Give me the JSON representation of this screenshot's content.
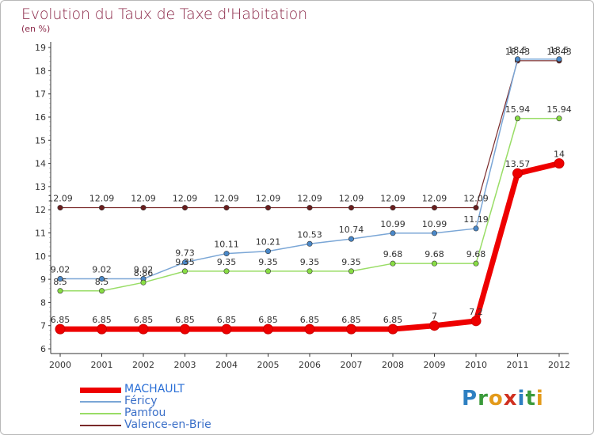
{
  "header": {
    "title": "Evolution du Taux de Taxe d'Habitation",
    "subtitle": "(en %)"
  },
  "logo": {
    "text": "Proxiti",
    "letters": [
      "P",
      "r",
      "o",
      "x",
      "i",
      "t",
      "i"
    ],
    "colors": [
      "#2d7fc1",
      "#3a9a3a",
      "#e39a1a",
      "#d03020",
      "#2d7fc1",
      "#3a9a3a",
      "#e39a1a"
    ]
  },
  "chart_data": {
    "type": "line",
    "title": "Evolution du Taux de Taxe d'Habitation",
    "xlabel": "",
    "ylabel": "(en %)",
    "x": [
      "2000",
      "2001",
      "2002",
      "2003",
      "2004",
      "2005",
      "2006",
      "2007",
      "2008",
      "2009",
      "2010",
      "2011",
      "2012"
    ],
    "ylim": [
      6,
      19
    ],
    "yticks": [
      "6",
      "7",
      "8",
      "9",
      "10",
      "11",
      "12",
      "13",
      "14",
      "15",
      "16",
      "17",
      "18",
      "19"
    ],
    "grid": false,
    "legend": "bottom-left",
    "series": [
      {
        "name": "MACHAULT",
        "color": "#ee0000",
        "values": [
          6.85,
          6.85,
          6.85,
          6.85,
          6.85,
          6.85,
          6.85,
          6.85,
          6.85,
          7,
          7.2,
          13.57,
          14
        ],
        "labels": [
          "6.85",
          "6.85",
          "6.85",
          "6.85",
          "6.85",
          "6.85",
          "6.85",
          "6.85",
          "6.85",
          "7",
          "7.2",
          "13.57",
          "14"
        ]
      },
      {
        "name": "Féricy",
        "color": "#7aa6d6",
        "values": [
          9.02,
          9.02,
          9.02,
          9.73,
          10.11,
          10.21,
          10.53,
          10.74,
          10.99,
          10.99,
          11.19,
          18.5,
          18.5
        ],
        "labels": [
          "9.02",
          "9.02",
          "9.02",
          "9.73",
          "10.11",
          "10.21",
          "10.53",
          "10.74",
          "10.99",
          "10.99",
          "11.19",
          "18.5",
          "18.5"
        ]
      },
      {
        "name": "Pamfou",
        "color": "#99dd66",
        "values": [
          8.5,
          8.5,
          8.86,
          9.35,
          9.35,
          9.35,
          9.35,
          9.35,
          9.68,
          9.68,
          9.68,
          15.94,
          15.94
        ],
        "labels": [
          "8.5",
          "8.5",
          "8.86",
          "9.35",
          "9.35",
          "9.35",
          "9.35",
          "9.35",
          "9.68",
          "9.68",
          "9.68",
          "15.94",
          "15.94"
        ]
      },
      {
        "name": "Valence-en-Brie",
        "color": "#7a2a2a",
        "values": [
          12.09,
          12.09,
          12.09,
          12.09,
          12.09,
          12.09,
          12.09,
          12.09,
          12.09,
          12.09,
          12.09,
          18.43,
          18.43
        ],
        "labels": [
          "12.09",
          "12.09",
          "12.09",
          "12.09",
          "12.09",
          "12.09",
          "12.09",
          "12.09",
          "12.09",
          "12.09",
          "12.09",
          "18.43",
          "18.43"
        ]
      }
    ]
  }
}
